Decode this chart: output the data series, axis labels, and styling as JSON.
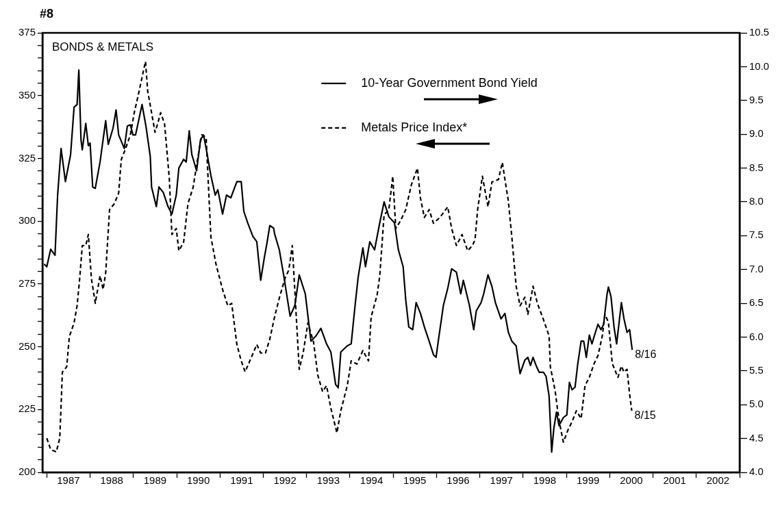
{
  "chart_data": {
    "type": "line",
    "title": "BONDS & METALS",
    "annotations": [
      "#8",
      "8/16",
      "8/15"
    ],
    "xlim": [
      1986.9,
      2003.0
    ],
    "xticks": [
      {
        "value": 1987,
        "label": null
      },
      {
        "value": 1987.5,
        "label": "1987"
      },
      {
        "value": 1988,
        "label": null
      },
      {
        "value": 1988.5,
        "label": "1988"
      },
      {
        "value": 1989,
        "label": null
      },
      {
        "value": 1989.5,
        "label": "1989"
      },
      {
        "value": 1990,
        "label": null
      },
      {
        "value": 1990.5,
        "label": "1990"
      },
      {
        "value": 1991,
        "label": null
      },
      {
        "value": 1991.5,
        "label": "1991"
      },
      {
        "value": 1992,
        "label": null
      },
      {
        "value": 1992.5,
        "label": "1992"
      },
      {
        "value": 1993,
        "label": null
      },
      {
        "value": 1993.5,
        "label": "1993"
      },
      {
        "value": 1994,
        "label": null
      },
      {
        "value": 1994.5,
        "label": "1994"
      },
      {
        "value": 1995,
        "label": null
      },
      {
        "value": 1995.5,
        "label": "1995"
      },
      {
        "value": 1996,
        "label": null
      },
      {
        "value": 1996.5,
        "label": "1996"
      },
      {
        "value": 1997,
        "label": null
      },
      {
        "value": 1997.5,
        "label": "1997"
      },
      {
        "value": 1998,
        "label": null
      },
      {
        "value": 1998.5,
        "label": "1998"
      },
      {
        "value": 1999,
        "label": null
      },
      {
        "value": 1999.5,
        "label": "1999"
      },
      {
        "value": 2000,
        "label": null
      },
      {
        "value": 2000.5,
        "label": "2000"
      },
      {
        "value": 2001,
        "label": null
      },
      {
        "value": 2001.5,
        "label": "2001"
      },
      {
        "value": 2002,
        "label": null
      },
      {
        "value": 2002.5,
        "label": "2002"
      },
      {
        "value": 2003,
        "label": null
      }
    ],
    "ylim": [
      200,
      375
    ],
    "yticks": [
      200,
      {
        "value": 205,
        "label": null
      },
      {
        "value": 210,
        "label": null
      },
      {
        "value": 215,
        "label": null
      },
      {
        "value": 220,
        "label": null
      },
      225,
      {
        "value": 230,
        "label": null
      },
      {
        "value": 235,
        "label": null
      },
      {
        "value": 240,
        "label": null
      },
      {
        "value": 245,
        "label": null
      },
      250,
      {
        "value": 255,
        "label": null
      },
      {
        "value": 260,
        "label": null
      },
      {
        "value": 265,
        "label": null
      },
      {
        "value": 270,
        "label": null
      },
      275,
      {
        "value": 280,
        "label": null
      },
      {
        "value": 285,
        "label": null
      },
      {
        "value": 290,
        "label": null
      },
      {
        "value": 295,
        "label": null
      },
      300,
      {
        "value": 305,
        "label": null
      },
      {
        "value": 310,
        "label": null
      },
      {
        "value": 315,
        "label": null
      },
      {
        "value": 320,
        "label": null
      },
      325,
      {
        "value": 330,
        "label": null
      },
      {
        "value": 335,
        "label": null
      },
      {
        "value": 340,
        "label": null
      },
      {
        "value": 345,
        "label": null
      },
      350,
      {
        "value": 355,
        "label": null
      },
      {
        "value": 360,
        "label": null
      },
      {
        "value": 365,
        "label": null
      },
      {
        "value": 370,
        "label": null
      },
      375
    ],
    "y2lim": [
      4.0,
      10.5
    ],
    "y2ticks": [
      {
        "value": 4,
        "label": "4.0"
      },
      4.5,
      {
        "value": 5,
        "label": "5.0"
      },
      5.5,
      {
        "value": 6,
        "label": "6.0"
      },
      6.5,
      {
        "value": 7,
        "label": "7.0"
      },
      7.5,
      {
        "value": 8,
        "label": "8.0"
      },
      8.5,
      {
        "value": 9,
        "label": "9.0"
      },
      9.5,
      {
        "value": 10,
        "label": "10.0"
      },
      10.5
    ],
    "legend": "top",
    "marker": "none",
    "series": [
      {
        "name": "10-Year Government Bond Yield",
        "color": "#000000",
        "axis": "y2",
        "line_style": "solid",
        "x": [
          1986.94,
          1987.0,
          1987.09,
          1987.19,
          1987.25,
          1987.33,
          1987.43,
          1987.55,
          1987.63,
          1987.7,
          1987.74,
          1987.79,
          1987.82,
          1987.9,
          1987.96,
          1988.0,
          1988.06,
          1988.12,
          1988.23,
          1988.36,
          1988.42,
          1988.53,
          1988.6,
          1988.66,
          1988.79,
          1988.86,
          1988.93,
          1988.99,
          1989.05,
          1989.2,
          1989.29,
          1989.39,
          1989.42,
          1989.53,
          1989.59,
          1989.69,
          1989.8,
          1989.89,
          1989.99,
          1990.05,
          1990.16,
          1990.22,
          1990.29,
          1990.35,
          1990.46,
          1990.55,
          1990.62,
          1990.68,
          1990.79,
          1990.89,
          1990.95,
          1991.06,
          1991.15,
          1991.25,
          1991.39,
          1991.49,
          1991.55,
          1991.64,
          1991.76,
          1991.85,
          1991.94,
          1992.02,
          1992.09,
          1992.15,
          1992.24,
          1992.26,
          1992.37,
          1992.47,
          1992.56,
          1992.62,
          1992.73,
          1992.83,
          1992.97,
          1993.1,
          1993.22,
          1993.33,
          1993.46,
          1993.56,
          1993.67,
          1993.73,
          1993.79,
          1993.94,
          1994.03,
          1994.12,
          1994.19,
          1994.3,
          1994.36,
          1994.46,
          1994.57,
          1994.69,
          1994.79,
          1994.9,
          1995.03,
          1995.12,
          1995.23,
          1995.29,
          1995.36,
          1995.45,
          1995.53,
          1995.63,
          1995.72,
          1995.83,
          1995.93,
          1995.99,
          1996.05,
          1996.16,
          1996.26,
          1996.35,
          1996.46,
          1996.56,
          1996.62,
          1996.76,
          1996.86,
          1996.92,
          1997.03,
          1997.09,
          1997.19,
          1997.28,
          1997.36,
          1997.49,
          1997.58,
          1997.66,
          1997.74,
          1997.84,
          1997.93,
          1998.04,
          1998.11,
          1998.17,
          1998.23,
          1998.3,
          1998.37,
          1998.47,
          1998.53,
          1998.6,
          1998.66,
          1998.71,
          1998.77,
          1998.83,
          1998.93,
          1999.01,
          1999.07,
          1999.13,
          1999.2,
          1999.26,
          1999.34,
          1999.4,
          1999.46,
          1999.53,
          1999.59,
          1999.67,
          1999.73,
          1999.8,
          1999.86,
          1999.94,
          1999.97,
          2000.03,
          2000.1,
          2000.16,
          2000.27,
          2000.33,
          2000.4,
          2000.46,
          2000.52
        ],
        "values": [
          7.08,
          7.04,
          7.3,
          7.21,
          8.1,
          8.79,
          8.3,
          8.7,
          9.4,
          9.44,
          9.95,
          8.92,
          8.77,
          9.16,
          8.83,
          8.87,
          8.22,
          8.2,
          8.59,
          9.2,
          8.85,
          9.09,
          9.36,
          8.99,
          8.79,
          9.12,
          9.14,
          8.99,
          8.99,
          9.44,
          9.12,
          8.67,
          8.22,
          7.93,
          8.22,
          8.14,
          7.93,
          7.82,
          8.1,
          8.5,
          8.63,
          8.59,
          9.05,
          8.7,
          8.46,
          8.92,
          8.99,
          8.79,
          8.39,
          8.1,
          8.18,
          7.82,
          8.1,
          8.06,
          8.3,
          8.3,
          7.86,
          7.69,
          7.49,
          7.41,
          6.84,
          7.16,
          7.41,
          7.65,
          7.61,
          7.53,
          7.29,
          6.92,
          6.55,
          6.31,
          6.47,
          6.92,
          6.64,
          5.94,
          6.02,
          6.13,
          5.9,
          5.78,
          5.3,
          5.25,
          5.78,
          5.87,
          5.9,
          6.47,
          6.88,
          7.32,
          7.04,
          7.41,
          7.29,
          7.69,
          8.0,
          7.78,
          7.69,
          7.29,
          7.04,
          6.55,
          6.15,
          6.11,
          6.51,
          6.35,
          6.15,
          5.94,
          5.74,
          5.7,
          5.98,
          6.47,
          6.72,
          7.01,
          6.96,
          6.64,
          6.84,
          6.47,
          6.11,
          6.39,
          6.51,
          6.64,
          6.92,
          6.75,
          6.51,
          6.27,
          6.35,
          6.07,
          5.94,
          5.87,
          5.46,
          5.66,
          5.7,
          5.58,
          5.7,
          5.58,
          5.48,
          5.48,
          5.42,
          5.13,
          4.3,
          4.65,
          4.89,
          4.69,
          4.81,
          4.85,
          5.33,
          5.22,
          5.26,
          5.59,
          5.94,
          5.94,
          5.7,
          6.03,
          5.9,
          6.07,
          6.19,
          6.11,
          6.19,
          6.64,
          6.74,
          6.6,
          6.15,
          5.9,
          6.51,
          6.27,
          6.07,
          6.11,
          5.81
        ]
      },
      {
        "name": "Metals Price Index*",
        "color": "#000000",
        "axis": "y",
        "line_style": "dashed",
        "x": [
          1987.0,
          1987.09,
          1987.22,
          1987.3,
          1987.36,
          1987.46,
          1987.52,
          1987.63,
          1987.7,
          1987.76,
          1987.82,
          1987.9,
          1987.96,
          1988.03,
          1988.12,
          1988.23,
          1988.3,
          1988.36,
          1988.45,
          1988.56,
          1988.66,
          1988.72,
          1988.82,
          1988.93,
          1989.02,
          1989.12,
          1989.23,
          1989.28,
          1989.33,
          1989.42,
          1989.5,
          1989.56,
          1989.63,
          1989.72,
          1989.83,
          1989.89,
          1989.99,
          1990.05,
          1990.16,
          1990.26,
          1990.38,
          1990.49,
          1990.58,
          1990.68,
          1990.79,
          1990.91,
          1991.06,
          1991.18,
          1991.27,
          1991.39,
          1991.49,
          1991.58,
          1991.69,
          1991.85,
          1991.94,
          1992.05,
          1992.15,
          1992.26,
          1992.37,
          1992.5,
          1992.59,
          1992.67,
          1992.73,
          1992.83,
          1992.92,
          1993.03,
          1993.16,
          1993.26,
          1993.37,
          1993.46,
          1993.56,
          1993.7,
          1993.79,
          1993.94,
          1994.03,
          1994.16,
          1994.3,
          1994.43,
          1994.49,
          1994.63,
          1994.69,
          1994.79,
          1994.9,
          1994.99,
          1995.06,
          1995.17,
          1995.29,
          1995.42,
          1995.56,
          1995.63,
          1995.72,
          1995.83,
          1995.93,
          1996.08,
          1996.26,
          1996.35,
          1996.46,
          1996.59,
          1996.72,
          1996.83,
          1996.89,
          1996.95,
          1997.06,
          1997.19,
          1997.28,
          1997.43,
          1997.52,
          1997.6,
          1997.66,
          1997.74,
          1997.84,
          1997.93,
          1998.04,
          1998.11,
          1998.23,
          1998.33,
          1998.47,
          1998.6,
          1998.63,
          1998.74,
          1998.8,
          1998.86,
          1998.93,
          1999.04,
          1999.13,
          1999.23,
          1999.34,
          1999.43,
          1999.53,
          1999.64,
          1999.73,
          1999.83,
          1999.89,
          1999.97,
          2000.06,
          2000.19,
          2000.27,
          2000.33,
          2000.4,
          2000.46,
          2000.51
        ],
        "values": [
          213.6,
          209.1,
          208.1,
          213.6,
          239.9,
          242.0,
          254.0,
          259.5,
          266.3,
          277.2,
          290.3,
          290.3,
          294.7,
          277.2,
          267.3,
          278.3,
          272.8,
          279.3,
          304.6,
          307.0,
          311.2,
          324.5,
          328.9,
          334.4,
          343.2,
          350.8,
          359.7,
          363.6,
          351.8,
          343.2,
          335.4,
          338.8,
          343.2,
          338.8,
          316.9,
          294.7,
          297.1,
          288.2,
          291.6,
          307.0,
          313.5,
          325.5,
          334.4,
          333.3,
          293.7,
          282.7,
          272.8,
          266.3,
          267.3,
          250.9,
          244.4,
          240.0,
          244.4,
          250.9,
          247.5,
          247.5,
          253.0,
          261.8,
          269.4,
          277.2,
          280.6,
          290.3,
          271.8,
          241.0,
          247.5,
          259.5,
          251.9,
          238.6,
          232.1,
          234.5,
          225.6,
          215.7,
          224.5,
          234.5,
          244.4,
          243.1,
          248.5,
          244.4,
          261.8,
          270.7,
          278.3,
          302.5,
          304.6,
          317.9,
          297.1,
          300.2,
          304.6,
          314.5,
          321.1,
          309.1,
          301.5,
          304.6,
          299.2,
          301.5,
          305.7,
          297.1,
          290.3,
          294.7,
          288.2,
          290.3,
          292.6,
          304.6,
          317.9,
          305.7,
          315.6,
          316.6,
          323.4,
          314.5,
          308.0,
          293.7,
          274.1,
          266.3,
          269.7,
          262.9,
          274.1,
          267.3,
          260.8,
          254.3,
          242.0,
          232.4,
          224.5,
          218.0,
          212.0,
          217.0,
          220.1,
          224.5,
          221.4,
          234.5,
          237.8,
          243.3,
          246.5,
          254.3,
          262.9,
          259.8,
          243.3,
          237.8,
          242.3,
          239.9,
          241.0,
          231.1,
          224.5
        ]
      }
    ]
  }
}
